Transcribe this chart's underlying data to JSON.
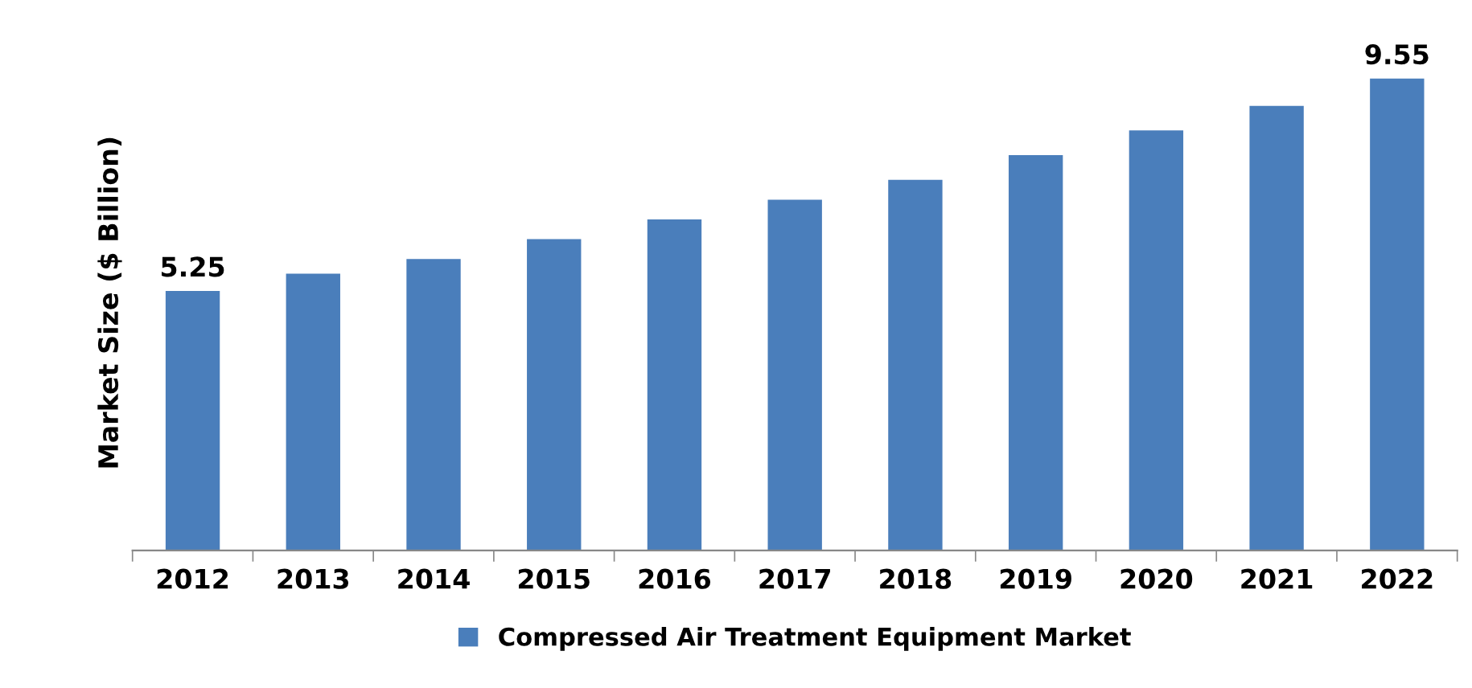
{
  "chart_data": {
    "type": "bar",
    "ylabel": "Market Size ($ Billion)",
    "categories": [
      "2012",
      "2013",
      "2014",
      "2015",
      "2016",
      "2017",
      "2018",
      "2019",
      "2020",
      "2021",
      "2022"
    ],
    "series": [
      {
        "name": "Compressed Air Treatment Equipment Market",
        "color": "#4a7ebb",
        "values": [
          5.25,
          5.6,
          5.9,
          6.3,
          6.7,
          7.1,
          7.5,
          8.0,
          8.5,
          9.0,
          9.55
        ],
        "value_labels": [
          "5.25",
          null,
          null,
          null,
          null,
          null,
          null,
          null,
          null,
          null,
          "9.55"
        ]
      }
    ],
    "grid": false,
    "legend": "bottom"
  }
}
